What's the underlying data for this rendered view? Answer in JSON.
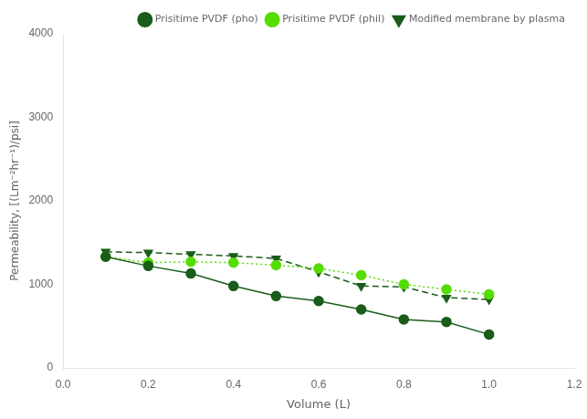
{
  "chart_data": {
    "type": "line",
    "x": [
      0.1,
      0.2,
      0.3,
      0.4,
      0.5,
      0.6,
      0.7,
      0.8,
      0.9,
      1.0
    ],
    "series": [
      {
        "name": "Prisitime PVDF (pho)",
        "color": "#1a5c1a",
        "marker": "circle",
        "line_style": "solid",
        "values": [
          1330,
          1220,
          1130,
          980,
          860,
          800,
          700,
          580,
          550,
          400
        ]
      },
      {
        "name": "Prisitime PVDF (phil)",
        "color": "#55dd00",
        "marker": "circle",
        "line_style": "dotted",
        "values": [
          1330,
          1260,
          1270,
          1260,
          1230,
          1190,
          1110,
          1000,
          940,
          880
        ]
      },
      {
        "name": "Modified membrane by plasma",
        "color": "#1a5c1a",
        "marker": "triangle_down",
        "line_style": "dashed",
        "values": [
          1390,
          1380,
          1360,
          1340,
          1310,
          1150,
          980,
          970,
          840,
          820
        ]
      }
    ],
    "x_label": "Volume (L)",
    "y_label": "Permeability, [(Lm⁻²hr⁻¹)/psi]",
    "xlim": [
      0.0,
      1.2
    ],
    "ylim": [
      0,
      4000
    ],
    "xticks": [
      {
        "value": 0.0,
        "label": "0.0"
      },
      0.2,
      0.4,
      0.6,
      0.8,
      {
        "value": 1.0,
        "label": "1.0"
      },
      1.2
    ],
    "yticks": [
      0,
      1000,
      2000,
      3000,
      4000
    ],
    "grid": false,
    "legend": "upper right"
  }
}
